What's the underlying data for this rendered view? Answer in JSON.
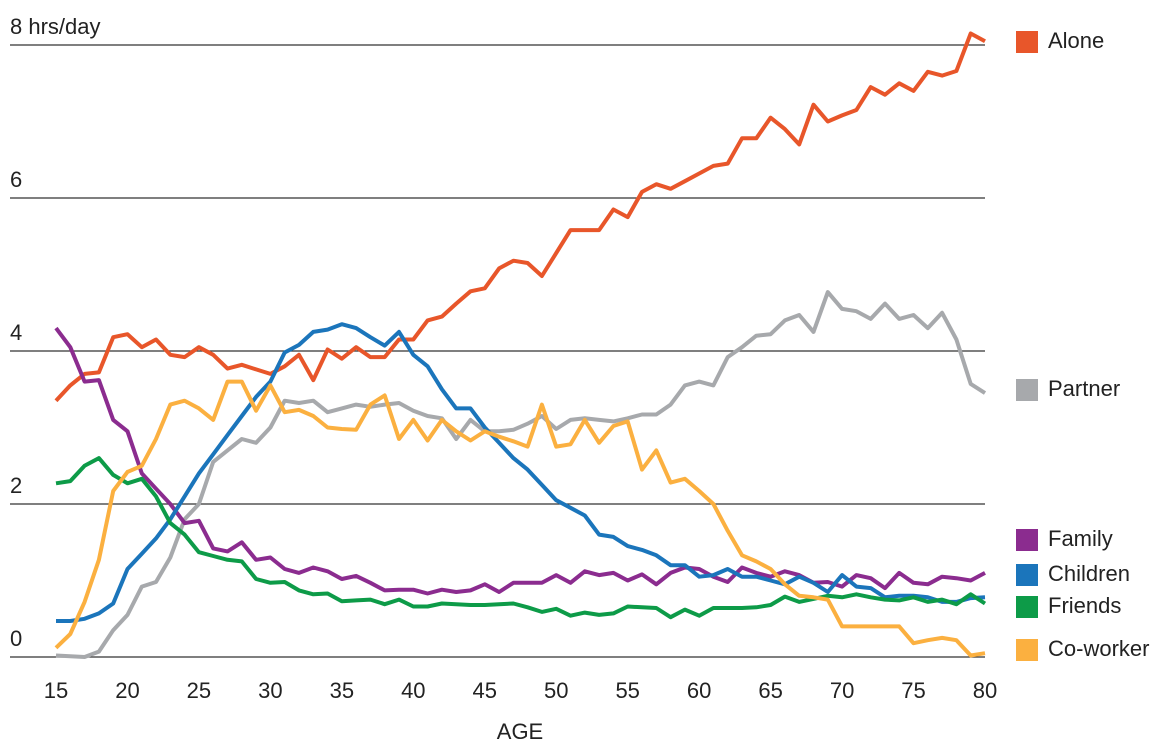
{
  "chart_data": {
    "type": "line",
    "x_label": "AGE",
    "xlim": [
      15,
      80
    ],
    "xticks": [
      15,
      20,
      25,
      30,
      35,
      40,
      45,
      50,
      55,
      60,
      65,
      70,
      75,
      80
    ],
    "ylim": [
      0,
      8
    ],
    "yticks": [
      0,
      2,
      4,
      6,
      {
        "value": 8,
        "label": "8 hrs/day"
      }
    ],
    "grid": true,
    "x": [
      15,
      16,
      17,
      18,
      19,
      20,
      21,
      22,
      23,
      24,
      25,
      26,
      27,
      28,
      29,
      30,
      31,
      32,
      33,
      34,
      35,
      36,
      37,
      38,
      39,
      40,
      41,
      42,
      43,
      44,
      45,
      46,
      47,
      48,
      49,
      50,
      51,
      52,
      53,
      54,
      55,
      56,
      57,
      58,
      59,
      60,
      61,
      62,
      63,
      64,
      65,
      66,
      67,
      68,
      69,
      70,
      71,
      72,
      73,
      74,
      75,
      76,
      77,
      78,
      79,
      80
    ],
    "series": [
      {
        "name": "Alone",
        "color": "#e8562a",
        "values": [
          3.35,
          3.55,
          3.7,
          3.72,
          4.18,
          4.22,
          4.05,
          4.15,
          3.95,
          3.92,
          4.05,
          3.95,
          3.77,
          3.82,
          3.76,
          3.7,
          3.8,
          3.95,
          3.62,
          4.02,
          3.9,
          4.05,
          3.92,
          3.92,
          4.15,
          4.15,
          4.4,
          4.45,
          4.62,
          4.78,
          4.82,
          5.08,
          5.18,
          5.15,
          4.98,
          5.28,
          5.58,
          5.58,
          5.58,
          5.85,
          5.75,
          6.08,
          6.18,
          6.12,
          6.22,
          6.32,
          6.42,
          6.45,
          6.78,
          6.78,
          7.05,
          6.9,
          6.7,
          7.22,
          7.0,
          7.08,
          7.15,
          7.45,
          7.35,
          7.5,
          7.4,
          7.65,
          7.6,
          7.66,
          8.15,
          8.05
        ]
      },
      {
        "name": "Partner",
        "color": "#a7a9ac",
        "values": [
          0.02,
          0.01,
          0.0,
          0.07,
          0.35,
          0.55,
          0.92,
          0.98,
          1.3,
          1.8,
          2.0,
          2.55,
          2.7,
          2.85,
          2.8,
          3.0,
          3.35,
          3.32,
          3.35,
          3.2,
          3.25,
          3.3,
          3.27,
          3.3,
          3.32,
          3.22,
          3.15,
          3.12,
          2.85,
          3.1,
          2.95,
          2.95,
          2.97,
          3.05,
          3.15,
          2.98,
          3.1,
          3.12,
          3.1,
          3.08,
          3.12,
          3.17,
          3.17,
          3.3,
          3.55,
          3.6,
          3.55,
          3.92,
          4.05,
          4.2,
          4.22,
          4.4,
          4.47,
          4.25,
          4.77,
          4.55,
          4.52,
          4.42,
          4.62,
          4.42,
          4.47,
          4.3,
          4.5,
          4.15,
          3.57,
          3.45
        ]
      },
      {
        "name": "Family",
        "color": "#8b2c8f",
        "values": [
          4.3,
          4.05,
          3.6,
          3.62,
          3.1,
          2.95,
          2.4,
          2.2,
          2.0,
          1.75,
          1.78,
          1.42,
          1.38,
          1.5,
          1.27,
          1.3,
          1.15,
          1.1,
          1.17,
          1.12,
          1.02,
          1.06,
          0.97,
          0.87,
          0.88,
          0.88,
          0.83,
          0.88,
          0.85,
          0.87,
          0.95,
          0.85,
          0.97,
          0.97,
          0.97,
          1.07,
          0.97,
          1.12,
          1.07,
          1.1,
          1.0,
          1.08,
          0.95,
          1.1,
          1.17,
          1.15,
          1.05,
          0.98,
          1.17,
          1.1,
          1.05,
          1.12,
          1.07,
          0.97,
          0.98,
          0.92,
          1.07,
          1.03,
          0.9,
          1.1,
          0.97,
          0.95,
          1.05,
          1.03,
          1.0,
          1.1
        ]
      },
      {
        "name": "Children",
        "color": "#1b75bb",
        "values": [
          0.47,
          0.47,
          0.5,
          0.57,
          0.7,
          1.15,
          1.35,
          1.55,
          1.8,
          2.1,
          2.4,
          2.65,
          2.9,
          3.15,
          3.4,
          3.6,
          3.98,
          4.08,
          4.25,
          4.28,
          4.35,
          4.3,
          4.18,
          4.07,
          4.25,
          3.95,
          3.8,
          3.5,
          3.25,
          3.25,
          3.0,
          2.8,
          2.6,
          2.45,
          2.25,
          2.05,
          1.95,
          1.85,
          1.6,
          1.57,
          1.45,
          1.4,
          1.33,
          1.2,
          1.2,
          1.05,
          1.07,
          1.15,
          1.05,
          1.05,
          1.0,
          0.95,
          1.05,
          0.97,
          0.85,
          1.07,
          0.92,
          0.9,
          0.78,
          0.8,
          0.8,
          0.78,
          0.72,
          0.72,
          0.77,
          0.78
        ]
      },
      {
        "name": "Friends",
        "color": "#0d9b48",
        "values": [
          2.27,
          2.3,
          2.5,
          2.6,
          2.38,
          2.27,
          2.33,
          2.1,
          1.75,
          1.6,
          1.37,
          1.32,
          1.27,
          1.25,
          1.02,
          0.97,
          0.98,
          0.87,
          0.82,
          0.83,
          0.73,
          0.74,
          0.75,
          0.69,
          0.75,
          0.66,
          0.66,
          0.7,
          0.69,
          0.68,
          0.68,
          0.69,
          0.7,
          0.65,
          0.59,
          0.63,
          0.54,
          0.58,
          0.55,
          0.57,
          0.66,
          0.65,
          0.64,
          0.52,
          0.62,
          0.54,
          0.64,
          0.64,
          0.64,
          0.65,
          0.68,
          0.79,
          0.72,
          0.76,
          0.8,
          0.78,
          0.82,
          0.78,
          0.75,
          0.74,
          0.78,
          0.72,
          0.75,
          0.69,
          0.82,
          0.7
        ]
      },
      {
        "name": "Co-worker",
        "color": "#fbb040",
        "values": [
          0.12,
          0.3,
          0.72,
          1.27,
          2.17,
          2.42,
          2.5,
          2.85,
          3.3,
          3.35,
          3.25,
          3.1,
          3.6,
          3.6,
          3.22,
          3.55,
          3.2,
          3.23,
          3.15,
          3.0,
          2.98,
          2.97,
          3.3,
          3.42,
          2.85,
          3.1,
          2.83,
          3.1,
          2.95,
          2.83,
          2.95,
          2.88,
          2.82,
          2.75,
          3.3,
          2.75,
          2.78,
          3.1,
          2.8,
          3.02,
          3.08,
          2.45,
          2.7,
          2.28,
          2.33,
          2.17,
          2.0,
          1.65,
          1.33,
          1.25,
          1.15,
          0.95,
          0.8,
          0.78,
          0.75,
          0.4,
          0.4,
          0.4,
          0.4,
          0.4,
          0.18,
          0.22,
          0.25,
          0.22,
          0.02,
          0.05
        ]
      }
    ]
  }
}
